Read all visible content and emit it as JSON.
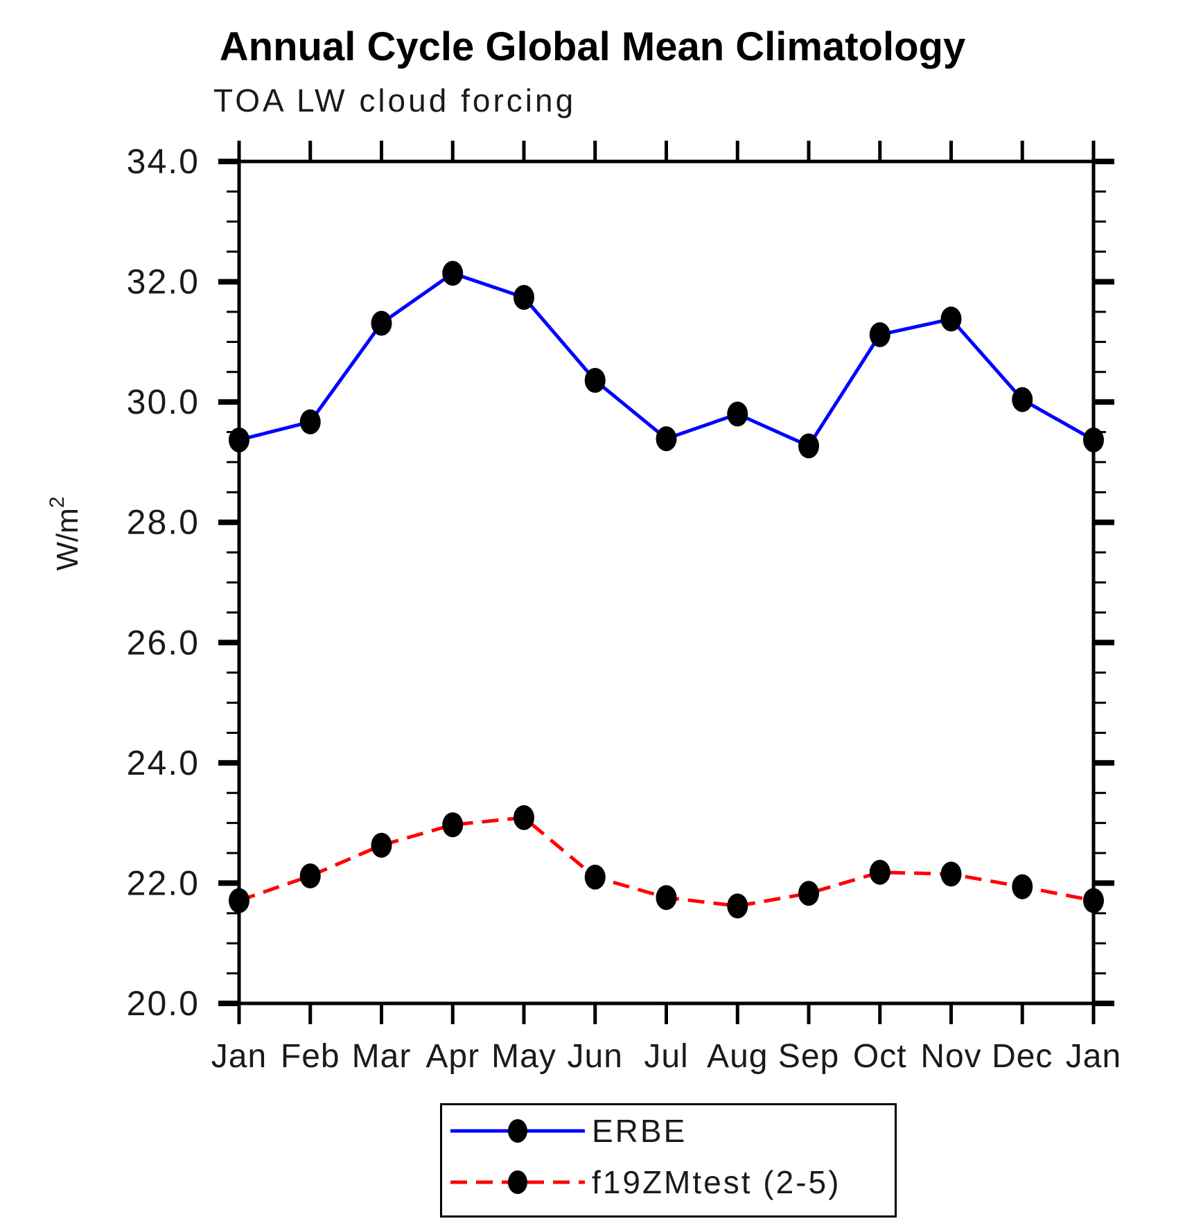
{
  "title": "Annual Cycle Global Mean Climatology",
  "subtitle": "TOA LW cloud forcing",
  "chart_data": {
    "type": "line",
    "categories": [
      "Jan",
      "Feb",
      "Mar",
      "Apr",
      "May",
      "Jun",
      "Jul",
      "Aug",
      "Sep",
      "Oct",
      "Nov",
      "Dec",
      "Jan"
    ],
    "series": [
      {
        "name": "ERBE",
        "color": "#0000ff",
        "line_style": "solid",
        "marker": "black-dot",
        "values": [
          29.37,
          29.67,
          31.31,
          32.14,
          31.74,
          30.36,
          29.39,
          29.8,
          29.27,
          31.12,
          31.38,
          30.04,
          29.37
        ]
      },
      {
        "name": "f19ZMtest (2-5)",
        "color": "#ff0000",
        "line_style": "dashed",
        "marker": "black-dot",
        "values": [
          21.71,
          22.12,
          22.63,
          22.97,
          23.09,
          22.1,
          21.76,
          21.62,
          21.83,
          22.18,
          22.15,
          21.94,
          21.71
        ]
      }
    ],
    "xlabel": "",
    "ylabel_main": "W/m",
    "ylabel_exponent": "2",
    "ylim": [
      20.0,
      34.0
    ],
    "y_major_tick_values": [
      20.0,
      22.0,
      24.0,
      26.0,
      28.0,
      30.0,
      32.0,
      34.0
    ],
    "y_tick_labels": [
      "20.0",
      "22.0",
      "24.0",
      "26.0",
      "28.0",
      "30.0",
      "32.0",
      "34.0"
    ],
    "y_minor_step": 0.5,
    "grid": false,
    "legend_position": "bottom-center"
  },
  "legend": {
    "entries": [
      {
        "label": "ERBE"
      },
      {
        "label": "f19ZMtest (2-5)"
      }
    ]
  }
}
